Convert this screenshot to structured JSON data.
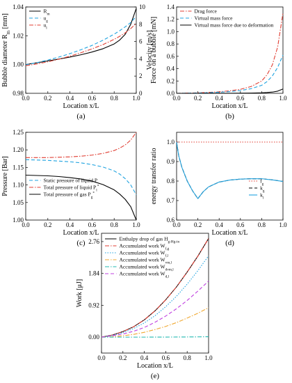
{
  "chart_data": [
    {
      "panel": "(a)",
      "type": "line",
      "xlabel": "Location x/L",
      "ylabel": "Bubble diameter R_m [mm]",
      "ylabel_right": "Velocity [m/s]",
      "xlim": [
        0.0,
        1.0
      ],
      "ylim": [
        0.98,
        1.04
      ],
      "ylim_right": [
        0,
        10
      ],
      "xticks": [
        "0.0",
        "0.2",
        "0.4",
        "0.6",
        "0.8",
        "1.0"
      ],
      "yticks": [
        "0.98",
        "1.00",
        "1.02",
        "1.04"
      ],
      "yticks_right": [
        "0",
        "2",
        "4",
        "6",
        "8",
        "10"
      ],
      "legend": "top-left",
      "x": [
        0.0,
        0.1,
        0.2,
        0.3,
        0.4,
        0.5,
        0.6,
        0.7,
        0.8,
        0.85,
        0.9,
        0.95,
        1.0
      ],
      "series": [
        {
          "name": "R_m",
          "axis": "left",
          "color": "#000000",
          "dash": "solid",
          "values": [
            1.0,
            1.0012,
            1.0025,
            1.0038,
            1.0052,
            1.0068,
            1.0087,
            1.011,
            1.0143,
            1.017,
            1.021,
            1.028,
            1.039
          ]
        },
        {
          "name": "u_g",
          "axis": "right",
          "color": "#1fa3e0",
          "dash": "dash",
          "values": [
            3.3,
            3.55,
            3.85,
            4.2,
            4.6,
            5.05,
            5.55,
            6.15,
            6.85,
            7.25,
            7.7,
            8.2,
            8.9
          ]
        },
        {
          "name": "u_l",
          "axis": "right",
          "color": "#e03c31",
          "dash": "dashdot",
          "values": [
            3.2,
            3.4,
            3.65,
            3.95,
            4.3,
            4.7,
            5.15,
            5.65,
            6.25,
            6.6,
            7.0,
            7.5,
            8.1
          ]
        }
      ]
    },
    {
      "panel": "(b)",
      "type": "line",
      "xlabel": "Location x/L",
      "ylabel": "Force on a bubble [mN]",
      "xlim": [
        0.0,
        1.0
      ],
      "ylim": [
        0.0,
        1.4
      ],
      "xticks": [
        "0.0",
        "0.2",
        "0.4",
        "0.6",
        "0.8",
        "1.0"
      ],
      "yticks": [
        "0.0",
        "0.2",
        "0.4",
        "0.6",
        "0.8",
        "1.0",
        "1.2",
        "1.4"
      ],
      "legend": "top-left",
      "x": [
        0.0,
        0.1,
        0.2,
        0.3,
        0.4,
        0.5,
        0.6,
        0.7,
        0.8,
        0.85,
        0.9,
        0.95,
        1.0
      ],
      "series": [
        {
          "name": "Drag force",
          "color": "#e03c31",
          "dash": "dashdot",
          "values": [
            0.0,
            0.003,
            0.008,
            0.015,
            0.025,
            0.04,
            0.065,
            0.11,
            0.2,
            0.3,
            0.46,
            0.75,
            1.3
          ]
        },
        {
          "name": "Virtual mass force",
          "color": "#1fa3e0",
          "dash": "dash",
          "values": [
            0.0,
            0.002,
            0.005,
            0.01,
            0.018,
            0.028,
            0.045,
            0.075,
            0.13,
            0.19,
            0.28,
            0.42,
            0.62
          ]
        },
        {
          "name": "Virtual mass force due to deformation",
          "color": "#000000",
          "dash": "solid",
          "values": [
            0.0,
            0.0,
            0.0,
            0.0005,
            0.001,
            0.0015,
            0.002,
            0.004,
            0.008,
            0.013,
            0.02,
            0.035,
            0.07
          ]
        }
      ]
    },
    {
      "panel": "(c)",
      "type": "line",
      "xlabel": "Location x/L",
      "ylabel": "Pressure [Bar]",
      "xlim": [
        0.0,
        1.0
      ],
      "ylim": [
        1.0,
        1.25
      ],
      "xticks": [
        "0.0",
        "0.2",
        "0.4",
        "0.6",
        "0.8",
        "1.0"
      ],
      "yticks": [
        "1.00",
        "1.05",
        "1.10",
        "1.15",
        "1.20",
        "1.25"
      ],
      "legend": "bottom-left",
      "x": [
        0.0,
        0.1,
        0.2,
        0.3,
        0.4,
        0.5,
        0.6,
        0.7,
        0.8,
        0.85,
        0.9,
        0.95,
        1.0
      ],
      "series": [
        {
          "name": "Static pressure of liquid P",
          "color": "#1fa3e0",
          "dash": "dash",
          "values": [
            1.172,
            1.171,
            1.17,
            1.168,
            1.166,
            1.163,
            1.158,
            1.151,
            1.14,
            1.131,
            1.118,
            1.1,
            1.072
          ]
        },
        {
          "name": "Total pressure of liquid P_l^*",
          "color": "#e03c31",
          "dash": "dashdot",
          "values": [
            1.178,
            1.178,
            1.178,
            1.179,
            1.18,
            1.182,
            1.185,
            1.19,
            1.198,
            1.205,
            1.214,
            1.228,
            1.25
          ]
        },
        {
          "name": "Total pressure of gas P_g^*",
          "color": "#000000",
          "dash": "solid",
          "values": [
            1.128,
            1.127,
            1.126,
            1.124,
            1.121,
            1.117,
            1.111,
            1.101,
            1.086,
            1.074,
            1.059,
            1.038,
            1.0
          ]
        }
      ]
    },
    {
      "panel": "(d)",
      "type": "line",
      "xlabel": "Location x/L",
      "ylabel": "energy transfer ratio",
      "xlim": [
        0.0,
        1.0
      ],
      "ylim": [
        0.6,
        1.05
      ],
      "xticks": [
        "0.0",
        "0.2",
        "0.4",
        "0.6",
        "0.8",
        "1.0"
      ],
      "yticks": [
        "0.6",
        "0.7",
        "0.8",
        "0.9",
        "1.0"
      ],
      "legend": "right",
      "x": [
        0.0,
        0.02,
        0.05,
        0.1,
        0.15,
        0.2,
        0.25,
        0.3,
        0.4,
        0.5,
        0.6,
        0.7,
        0.8,
        0.9,
        1.0
      ],
      "series": [
        {
          "name": "f_g",
          "color": "#e03c31",
          "dash": "dot",
          "values": [
            1.0,
            1.0,
            1.0,
            1.0,
            1.0,
            1.0,
            1.0,
            1.0,
            1.0,
            1.0,
            1.0,
            1.0,
            1.0,
            1.0,
            1.0
          ]
        },
        {
          "name": "k_g",
          "color": "#000000",
          "dash": "dash",
          "values": [
            1.0,
            0.93,
            0.87,
            0.8,
            0.75,
            0.71,
            0.745,
            0.77,
            0.795,
            0.805,
            0.81,
            0.812,
            0.812,
            0.806,
            0.798
          ]
        },
        {
          "name": "k_l",
          "color": "#1fa3e0",
          "dash": "solid",
          "values": [
            1.0,
            0.93,
            0.87,
            0.8,
            0.75,
            0.71,
            0.745,
            0.77,
            0.795,
            0.805,
            0.81,
            0.812,
            0.812,
            0.806,
            0.798
          ]
        }
      ]
    },
    {
      "panel": "(e)",
      "type": "line",
      "xlabel": "Location x/L",
      "ylabel": "Work [μJ]",
      "xlim": [
        0.0,
        1.0
      ],
      "ylim": [
        -0.46,
        3.0
      ],
      "xticks": [
        "0.0",
        "0.2",
        "0.4",
        "0.6",
        "0.8",
        "1.0"
      ],
      "yticks": [
        "0.00",
        "0.92",
        "1.84",
        "2.76"
      ],
      "legend": "top-left",
      "x": [
        0.0,
        0.1,
        0.2,
        0.3,
        0.4,
        0.5,
        0.6,
        0.7,
        0.8,
        0.9,
        1.0
      ],
      "series": [
        {
          "name": "Enthalpy drop of gas H_g-H_g-in",
          "color": "#000000",
          "dash": "solid",
          "values": [
            0.0,
            0.06,
            0.16,
            0.3,
            0.5,
            0.76,
            1.08,
            1.45,
            1.88,
            2.34,
            2.85
          ]
        },
        {
          "name": "Accumulated work W_f,g",
          "color": "#e03c31",
          "dash": "dashdot",
          "values": [
            0.0,
            0.06,
            0.16,
            0.3,
            0.5,
            0.76,
            1.08,
            1.45,
            1.88,
            2.34,
            2.85
          ]
        },
        {
          "name": "Accumulated work W_f,l",
          "color": "#1fa3e0",
          "dash": "dot",
          "values": [
            0.0,
            0.05,
            0.13,
            0.25,
            0.41,
            0.62,
            0.88,
            1.18,
            1.53,
            1.92,
            2.35
          ]
        },
        {
          "name": "Accumulated work W_vm,l",
          "color": "#f0a830",
          "dash": "dashdot",
          "values": [
            0.0,
            0.01,
            0.04,
            0.08,
            0.14,
            0.22,
            0.31,
            0.42,
            0.55,
            0.69,
            0.85
          ]
        },
        {
          "name": "Accumulated work W_dvm,l",
          "color": "#20b8b0",
          "dash": "dashdot",
          "values": [
            0.0,
            0.0,
            0.0,
            0.0,
            0.0,
            0.001,
            0.002,
            0.003,
            0.005,
            0.008,
            0.012
          ]
        },
        {
          "name": "Accumulated work W_d,l",
          "color": "#c040e0",
          "dash": "dash",
          "values": [
            0.0,
            0.04,
            0.09,
            0.17,
            0.28,
            0.43,
            0.61,
            0.82,
            1.06,
            1.33,
            1.62
          ]
        }
      ]
    }
  ]
}
